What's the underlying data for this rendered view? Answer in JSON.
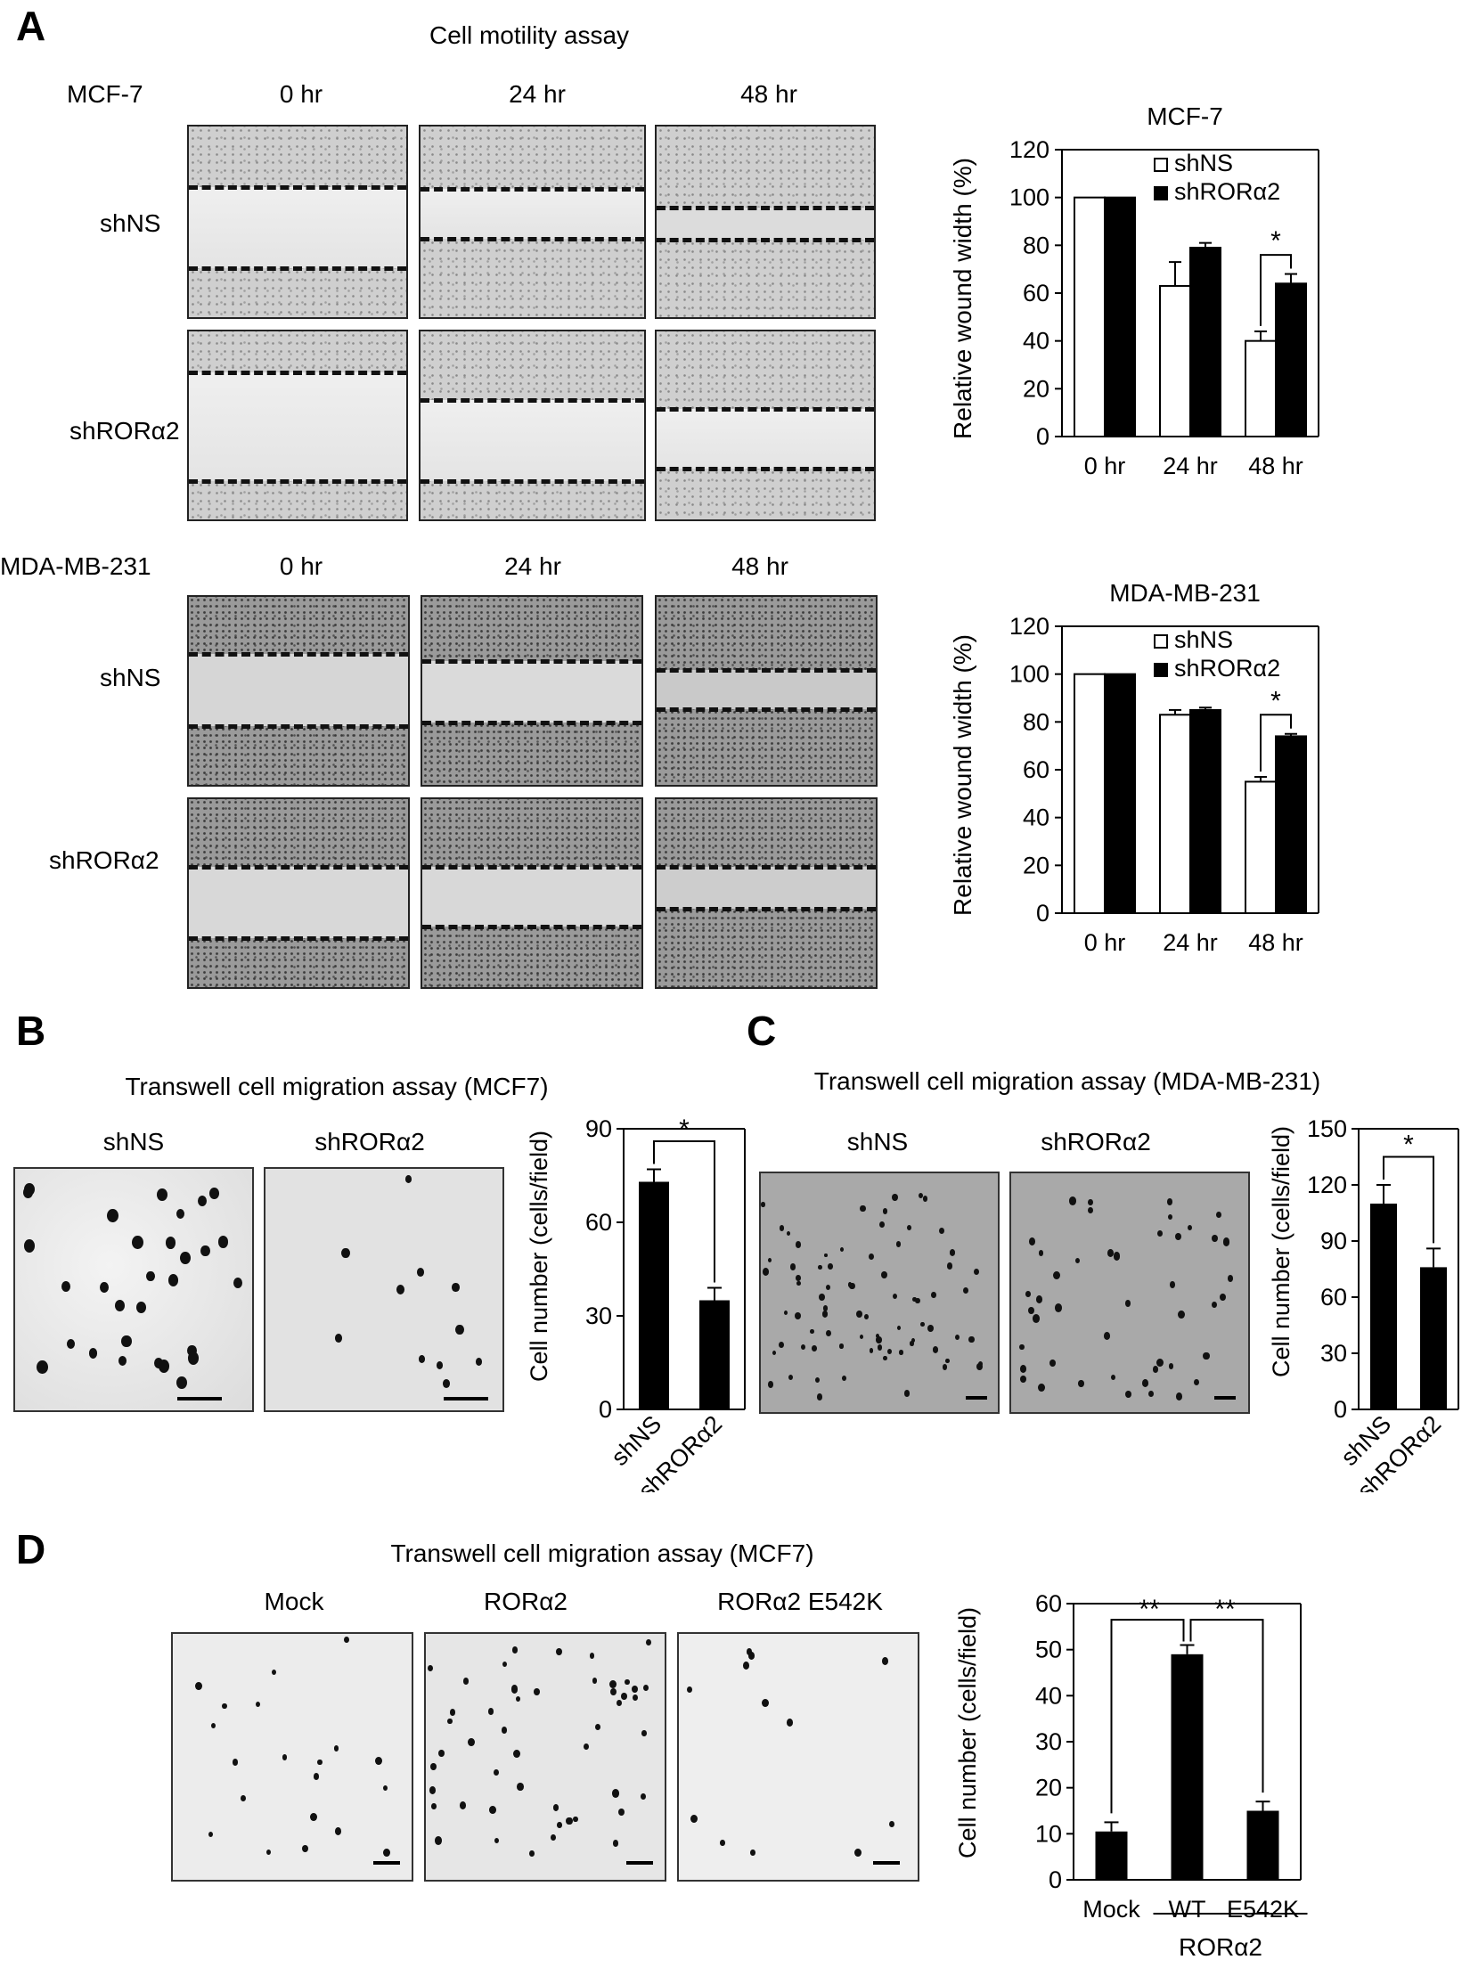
{
  "panelA": {
    "label": "A",
    "title": "Cell motility assay",
    "mcf7": {
      "cell_line": "MCF-7",
      "times": [
        "0 hr",
        "24 hr",
        "48 hr"
      ],
      "rows": [
        "shNS",
        "shRORα2"
      ]
    },
    "mda": {
      "cell_line": "MDA-MB-231",
      "times": [
        "0 hr",
        "24 hr",
        "48 hr"
      ],
      "rows": [
        "shNS",
        "shRORα2"
      ]
    }
  },
  "panelB": {
    "label": "B",
    "title": "Transwell cell migration assay (MCF7)",
    "fields": [
      "shNS",
      "shRORα2"
    ]
  },
  "panelC": {
    "label": "C",
    "title": "Transwell cell migration assay (MDA-MB-231)",
    "fields": [
      "shNS",
      "shRORα2"
    ]
  },
  "panelD": {
    "label": "D",
    "title": "Transwell cell migration assay (MCF7)",
    "fields": [
      "Mock",
      "RORα2",
      "RORα2 E542K"
    ]
  },
  "colors": {
    "shNS": "#ffffff",
    "shRORa2": "#000000"
  },
  "chart_data": [
    {
      "id": "chartA1",
      "type": "bar",
      "title": "MCF-7",
      "categories": [
        "0 hr",
        "24 hr",
        "48 hr"
      ],
      "series": [
        {
          "name": "shNS",
          "values": [
            100,
            63,
            40
          ],
          "errors": [
            0,
            10,
            4
          ]
        },
        {
          "name": "shRORα2",
          "values": [
            100,
            79,
            64
          ],
          "errors": [
            0,
            2,
            4
          ]
        }
      ],
      "ylabel": "Relative wound width (%)",
      "ylim": [
        0,
        120
      ],
      "yticks": [
        "0",
        "20",
        "40",
        "60",
        "80",
        "100",
        "120"
      ],
      "legend": "top-right",
      "significance": "*"
    },
    {
      "id": "chartA2",
      "type": "bar",
      "title": "MDA-MB-231",
      "categories": [
        "0 hr",
        "24 hr",
        "48 hr"
      ],
      "series": [
        {
          "name": "shNS",
          "values": [
            100,
            83,
            55
          ],
          "errors": [
            0,
            2,
            2
          ]
        },
        {
          "name": "shRORα2",
          "values": [
            100,
            85,
            74
          ],
          "errors": [
            0,
            1,
            1
          ]
        }
      ],
      "ylabel": "Relative wound width (%)",
      "ylim": [
        0,
        120
      ],
      "yticks": [
        "0",
        "20",
        "40",
        "60",
        "80",
        "100",
        "120"
      ],
      "legend": "top-right",
      "significance": "*"
    },
    {
      "id": "chartB",
      "type": "bar",
      "categories": [
        "shNS",
        "shRORα2"
      ],
      "values": [
        73,
        35
      ],
      "errors": [
        4,
        4
      ],
      "ylabel": "Cell number (cells/field)",
      "ylim": [
        0,
        90
      ],
      "yticks": [
        "0",
        "30",
        "60",
        "90"
      ],
      "significance": "*"
    },
    {
      "id": "chartC",
      "type": "bar",
      "categories": [
        "shNS",
        "shRORα2"
      ],
      "values": [
        110,
        76
      ],
      "errors": [
        10,
        10
      ],
      "ylabel": "Cell number (cells/field)",
      "ylim": [
        0,
        150
      ],
      "yticks": [
        "0",
        "30",
        "60",
        "90",
        "120",
        "150"
      ],
      "significance": "*"
    },
    {
      "id": "chartD",
      "type": "bar",
      "categories": [
        "Mock",
        "WT",
        "E542K"
      ],
      "values": [
        10.5,
        49,
        15
      ],
      "errors": [
        2,
        2,
        2
      ],
      "ylabel": "Cell number (cells/field)",
      "ylim": [
        0,
        60
      ],
      "yticks": [
        "0",
        "10",
        "20",
        "30",
        "40",
        "50",
        "60"
      ],
      "group_label": "RORα2",
      "significance": [
        "**",
        "**"
      ]
    }
  ]
}
